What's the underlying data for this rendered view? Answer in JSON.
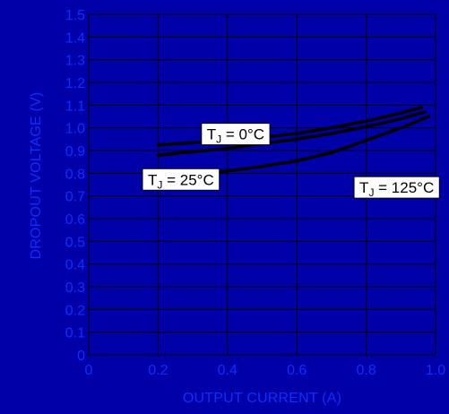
{
  "colors": {
    "background": "#0000a8",
    "grid": "#000000",
    "curve": "#000000",
    "tick_text": "#0b30ff",
    "label_box": "#ffffff"
  },
  "chart_data": {
    "type": "line",
    "title": "",
    "xlabel": "OUTPUT CURRENT (A)",
    "ylabel": "DROPOUT VOLTAGE (V)",
    "xlim": [
      0,
      1.0
    ],
    "ylim": [
      0,
      1.5
    ],
    "x_ticks": [
      "0",
      "0.2",
      "0.4",
      "0.6",
      "0.8",
      "1.0"
    ],
    "y_ticks": [
      "0",
      "0.1",
      "0.2",
      "0.3",
      "0.4",
      "0.5",
      "0.6",
      "0.7",
      "0.8",
      "0.9",
      "1.0",
      "1.1",
      "1.2",
      "1.3",
      "1.4",
      "1.5"
    ],
    "x_tick_values": [
      0,
      0.2,
      0.4,
      0.6,
      0.8,
      1.0
    ],
    "y_tick_values": [
      0,
      0.1,
      0.2,
      0.3,
      0.4,
      0.5,
      0.6,
      0.7,
      0.8,
      0.9,
      1.0,
      1.1,
      1.2,
      1.3,
      1.4,
      1.5
    ],
    "x_gridlines": [
      0,
      0.2,
      0.4,
      0.6,
      0.8,
      1.0
    ],
    "y_gridlines": [
      0,
      0.1,
      0.2,
      0.3,
      0.4,
      0.5,
      0.6,
      0.7,
      0.8,
      0.9,
      1.0,
      1.1,
      1.2,
      1.3,
      1.4,
      1.5
    ],
    "grid": true,
    "series": [
      {
        "name": "TJ = 0°C",
        "x": [
          0.2,
          0.3,
          0.4,
          0.5,
          0.6,
          0.7,
          0.8,
          0.9,
          0.96
        ],
        "y": [
          0.925,
          0.935,
          0.945,
          0.958,
          0.975,
          1.0,
          1.03,
          1.065,
          1.09
        ]
      },
      {
        "name": "TJ = 25°C",
        "x": [
          0.2,
          0.3,
          0.4,
          0.5,
          0.6,
          0.7,
          0.8,
          0.9,
          0.97
        ],
        "y": [
          0.88,
          0.895,
          0.91,
          0.93,
          0.95,
          0.975,
          1.005,
          1.04,
          1.07
        ]
      },
      {
        "name": "TJ = 125°C",
        "x": [
          0.2,
          0.3,
          0.4,
          0.5,
          0.6,
          0.7,
          0.8,
          0.9,
          0.98
        ],
        "y": [
          0.775,
          0.795,
          0.81,
          0.83,
          0.855,
          0.89,
          0.945,
          1.0,
          1.05
        ]
      }
    ],
    "annotations": [
      {
        "base": "T",
        "sub": "J",
        "rest": " = 0°C",
        "anchor_x": 0.325,
        "anchor_y": 1.02
      },
      {
        "base": "T",
        "sub": "J",
        "rest": " = 25°C",
        "anchor_x": 0.155,
        "anchor_y": 0.82
      },
      {
        "base": "T",
        "sub": "J",
        "rest": " = 125°C",
        "anchor_x": 0.765,
        "anchor_y": 0.785
      }
    ]
  }
}
